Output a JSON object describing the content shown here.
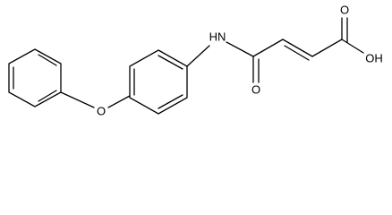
{
  "atoms": {
    "ether_o": "O",
    "amide_n": "HN",
    "amide_o": "O",
    "acid_o": "O",
    "acid_oh": "OH"
  }
}
